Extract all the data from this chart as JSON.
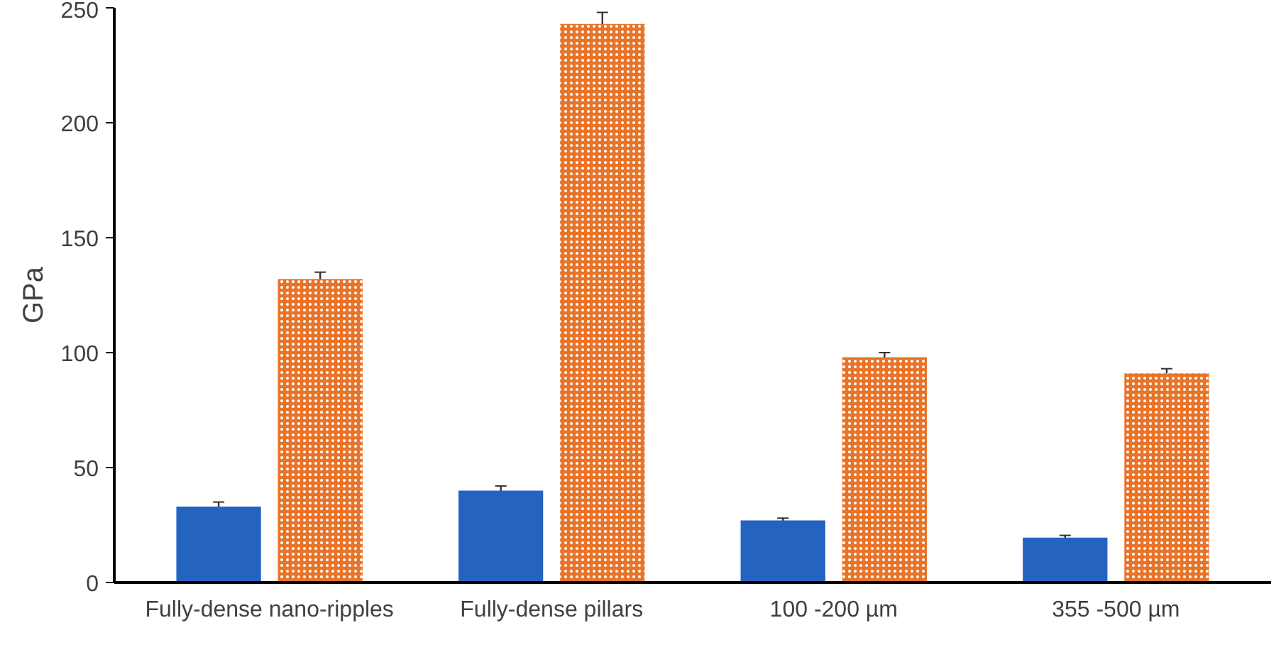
{
  "chart_data": {
    "type": "bar",
    "ylabel": "GPa",
    "categories": [
      "Fully-dense nano-ripples",
      "Fully-dense pillars",
      "100 -200 µm",
      "355 -500 µm"
    ],
    "series": [
      {
        "color": "#2563c0",
        "values": [
          33,
          40,
          27,
          19.5
        ],
        "errors": [
          2,
          2,
          1,
          1
        ]
      },
      {
        "color": "#e8742a",
        "values": [
          132,
          243,
          98,
          91
        ],
        "errors": [
          3,
          5,
          2,
          2
        ]
      }
    ],
    "ylim": [
      0,
      250
    ],
    "yticks": [
      0,
      50,
      100,
      150,
      200,
      250
    ],
    "grid": false
  }
}
